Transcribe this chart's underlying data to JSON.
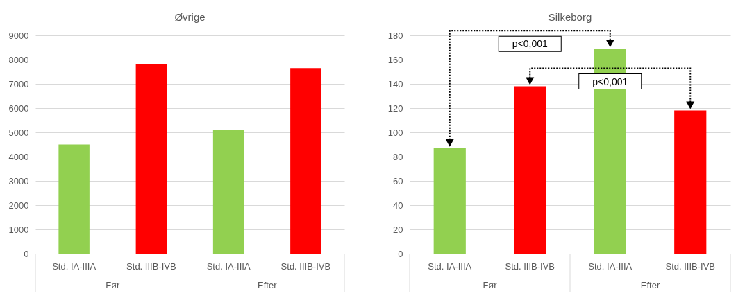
{
  "chart_data": [
    {
      "type": "bar",
      "title": "Øvrige",
      "categories": [
        "Std. IA-IIIA",
        "Std. IIIB-IVB",
        "Std. IA-IIIA",
        "Std. IIIB-IVB"
      ],
      "values": [
        4500,
        7800,
        5100,
        7650
      ],
      "colors": [
        "#92d050",
        "#ff0000",
        "#92d050",
        "#ff0000"
      ],
      "ylim": [
        0,
        9000
      ],
      "yticks": [
        0,
        1000,
        2000,
        3000,
        4000,
        5000,
        6000,
        7000,
        8000,
        9000
      ],
      "grid": "y",
      "annotations": [
        "Før",
        "Efter"
      ]
    },
    {
      "type": "bar",
      "title": "Silkeborg",
      "categories": [
        "Std. IA-IIIA",
        "Std. IIIB-IVB",
        "Std. IA-IIIA",
        "Std. IIIB-IVB"
      ],
      "values": [
        87,
        138,
        169,
        118
      ],
      "colors": [
        "#92d050",
        "#ff0000",
        "#92d050",
        "#ff0000"
      ],
      "ylim": [
        0,
        180
      ],
      "yticks": [
        0,
        20,
        40,
        60,
        80,
        100,
        120,
        140,
        160,
        180
      ],
      "grid": "y",
      "annotations": [
        "Før",
        "Efter",
        "p<0,001",
        "p<0,001"
      ]
    }
  ]
}
